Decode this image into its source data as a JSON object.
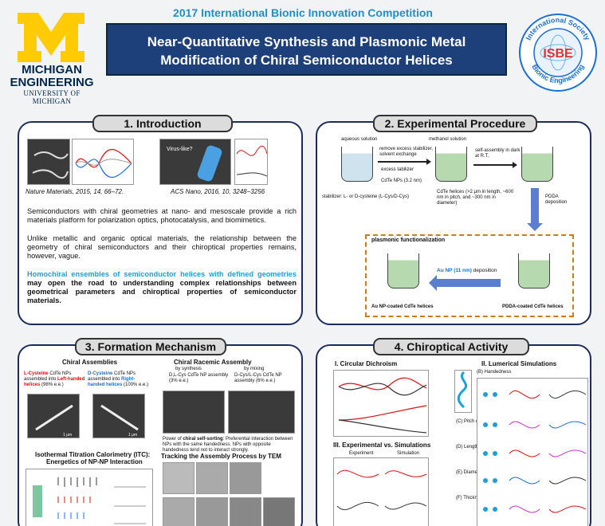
{
  "header": {
    "competition": "2017 International Bionic Innovation Competition",
    "title_line1": "Near-Quantitative Synthesis and Plasmonic Metal",
    "title_line2": "Modification of Chiral Semiconductor Helices",
    "michigan_line1": "MICHIGAN",
    "michigan_line2": "ENGINEERING",
    "michigan_line3": "UNIVERSITY OF MICHIGAN",
    "isbe_ring_top": "International Society",
    "isbe_ring_bottom": "Bionic Engineering",
    "isbe_abbr": "ISBE"
  },
  "intro": {
    "heading": "1. Introduction",
    "cite1": "Nature Materials, 2015, 14, 66–72.",
    "cite2": "ACS Nano, 2016, 10, 3248−3256",
    "p1": "Semiconductors with chiral geometries at nano- and mesoscale provide a rich materials platform for polarization optics, photocatalysis, and biomimetics.",
    "p2": "Unlike metallic and organic optical materials, the relationship between the geometry of chiral semiconductors and their chiroptical properties remains, however, vague.",
    "p3_highlight": "Homochiral ensembles of semiconductor helices with defined geometries",
    "p3_rest": "may open the road to understanding complex relationships between geometrical parameters and chiroptical properties of semiconductor materials.",
    "inset_label": "Virus-like?"
  },
  "experimental": {
    "heading": "2. Experimental Procedure",
    "aqueous": "aqueous solution",
    "methanol": "methanol solution",
    "step1": "remove excess stabilizer, solvent exchange",
    "excess": "excess tabilizer",
    "cdte_nps": "CdTe NPs (3.2 nm)",
    "stabilizer": "stabilizer: L- or D-cysteine (L-Cys/D-Cys)",
    "step2": "self-assembly in dark at R.T.",
    "helices": "CdTe helices (>2 μm in length, ~600 nm in pitch, and ~300 nm in diameter)",
    "pdda": "PDDA deposition",
    "plasmonic": "plasmonic functionalization",
    "au_dep_colored": "Au NP (11 nm)",
    "au_dep_rest": "deposition",
    "au_coated": "Au NP-coated CdTe helices",
    "pdda_coated": "PDDA-coated CdTe helices"
  },
  "formation": {
    "heading": "3. Formation Mechanism",
    "chiral_assemblies": "Chiral Assemblies",
    "l_text_a": "L-Cysteine",
    "l_text_b": "CdTe NPs assembled into",
    "l_text_c": "Left-handed helices",
    "l_text_d": "(98% e.e.)",
    "d_text_a": "D-Cysteine",
    "d_text_b": "CdTe NPs assembled into",
    "d_text_c": "Right-handed helices",
    "d_text_d": "(100% e.e.)",
    "racemic": "Chiral Racemic Assembly",
    "by_synthesis": "by synthesis",
    "by_mixing": "by mixing",
    "syn_text": "D,L-Cys CdTe NP assembly (3% e.e.)",
    "mix_text": "D-Cys/L-Cys CdTe NP assembly (6% e.e.)",
    "self_sorting_a": "Power of",
    "self_sorting_b": "chiral self-sorting",
    "self_sorting_c": ": Preferential interaction between NPs with the same handedness. NPs with opposite handedness tend not to interact strongly.",
    "itc_title1": "Isothermal Titration Calorimetry (ITC):",
    "itc_title2": "Energetics of NP-NP Interaction",
    "tem_title": "Tracking the Assembly Process by TEM",
    "scale": "1 μm"
  },
  "chiroptical": {
    "heading": "4. Chiroptical Activity",
    "cd": "I. Circular Dichroism",
    "lumerical": "II. Lumerical Simulations",
    "expsim": "III. Experimental vs. Simulations",
    "experiment": "Experiment",
    "simulation": "Simulation",
    "handedness": "(B) Handedness",
    "pitch": "(C) Pitch (nm)",
    "length": "(D) Length (nm)",
    "diameter": "(E) Diameter (nm)",
    "thickness": "(F) Thickness (nm)"
  },
  "colors": {
    "title_bg": "#1d3f7a",
    "accent_blue": "#1aa0dc",
    "michigan_maize": "#ffcb05",
    "michigan_blue": "#00274c",
    "dashed_orange": "#d07a1a"
  }
}
